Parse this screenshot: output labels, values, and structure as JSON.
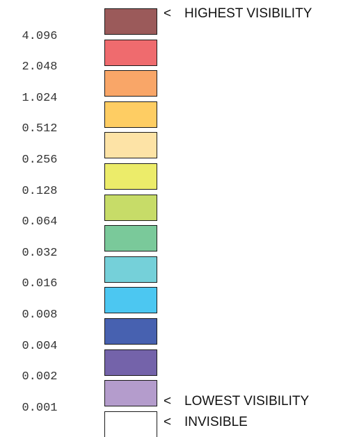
{
  "legend": {
    "levels": [
      {
        "value": "",
        "color": "#9b5a5a"
      },
      {
        "value": "4.096",
        "color": "#ef6b6e"
      },
      {
        "value": "2.048",
        "color": "#f9a668"
      },
      {
        "value": "1.024",
        "color": "#fecd63"
      },
      {
        "value": "0.512",
        "color": "#fde3a6"
      },
      {
        "value": "0.256",
        "color": "#ecec6a"
      },
      {
        "value": "0.128",
        "color": "#c7dc68"
      },
      {
        "value": "0.064",
        "color": "#7ac99a"
      },
      {
        "value": "0.032",
        "color": "#75d0d9"
      },
      {
        "value": "0.016",
        "color": "#4cc7f1"
      },
      {
        "value": "0.008",
        "color": "#4761b0"
      },
      {
        "value": "0.004",
        "color": "#7463aa"
      },
      {
        "value": "0.002",
        "color": "#b49ccc"
      },
      {
        "value": "0.001",
        "color": "#ffffff"
      }
    ],
    "markers": {
      "arrow": "<",
      "highest": "HIGHEST VISIBILITY",
      "lowest": "LOWEST VISIBILITY",
      "invisible": "INVISIBLE"
    }
  }
}
